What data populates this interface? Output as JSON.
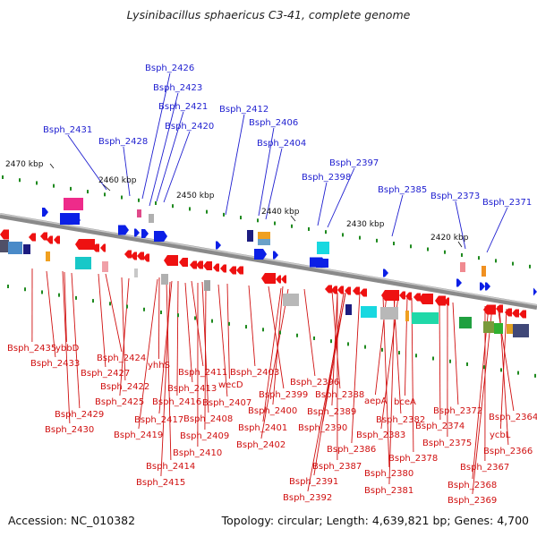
{
  "title": "Lysinibacillus sphaericus C3-41, complete genome",
  "footer": {
    "accession": "Accession: NC_010382",
    "summary": "Topology: circular; Length: 4,639,821 bp; Genes: 4,700"
  },
  "colors": {
    "forward_label": "#1f1fd0",
    "reverse_label": "#d01010",
    "forward_feature": "#0b1fe6",
    "reverse_feature": "#ee1111",
    "backbone": "#8a8a8a",
    "tick": "#1f8a1f"
  },
  "ruler": [
    "2470 kbp",
    "2460 kbp",
    "2450 kbp",
    "2440 kbp",
    "2430 kbp",
    "2420 kbp"
  ],
  "top_labels": [
    "Bsph_2426",
    "Bsph_2423",
    "Bsph_2421",
    "Bsph_2412",
    "Bsph_2420",
    "Bsph_2406",
    "Bsph_2431",
    "Bsph_2428",
    "Bsph_2404",
    "Bsph_2397",
    "Bsph_2398",
    "Bsph_2385",
    "Bsph_2373",
    "Bsph_2371"
  ],
  "bottom_labels": [
    "Bsph_2435",
    "ybbD",
    "Bsph_2433",
    "Bsph_2424",
    "yhhS",
    "Bsph_2427",
    "Bsph_2411",
    "Bsph_2403",
    "Bsph_2422",
    "Bsph_2413",
    "wecD",
    "Bsph_2396",
    "Bsph_2399",
    "Bsph_2388",
    "Bsph_2425",
    "Bsph_2416",
    "Bsph_2407",
    "aepA",
    "bceA",
    "Bsph_2429",
    "Bsph_2400",
    "Bsph_2389",
    "Bsph_2372",
    "Bsph_2364",
    "Bsph_2417",
    "Bsph_2408",
    "Bsph_2382",
    "Bsph_2374",
    "Bsph_2430",
    "Bsph_2401",
    "Bsph_2390",
    "Bsph_2419",
    "Bsph_2409",
    "Bsph_2383",
    "Bsph_2375",
    "ycbL",
    "Bsph_2402",
    "Bsph_2386",
    "Bsph_2366",
    "Bsph_2410",
    "Bsph_2378",
    "Bsph_2414",
    "Bsph_2387",
    "Bsph_2367",
    "Bsph_2380",
    "Bsph_2415",
    "Bsph_2391",
    "Bsph_2368",
    "Bsph_2381",
    "Bsph_2392",
    "Bsph_2369"
  ]
}
